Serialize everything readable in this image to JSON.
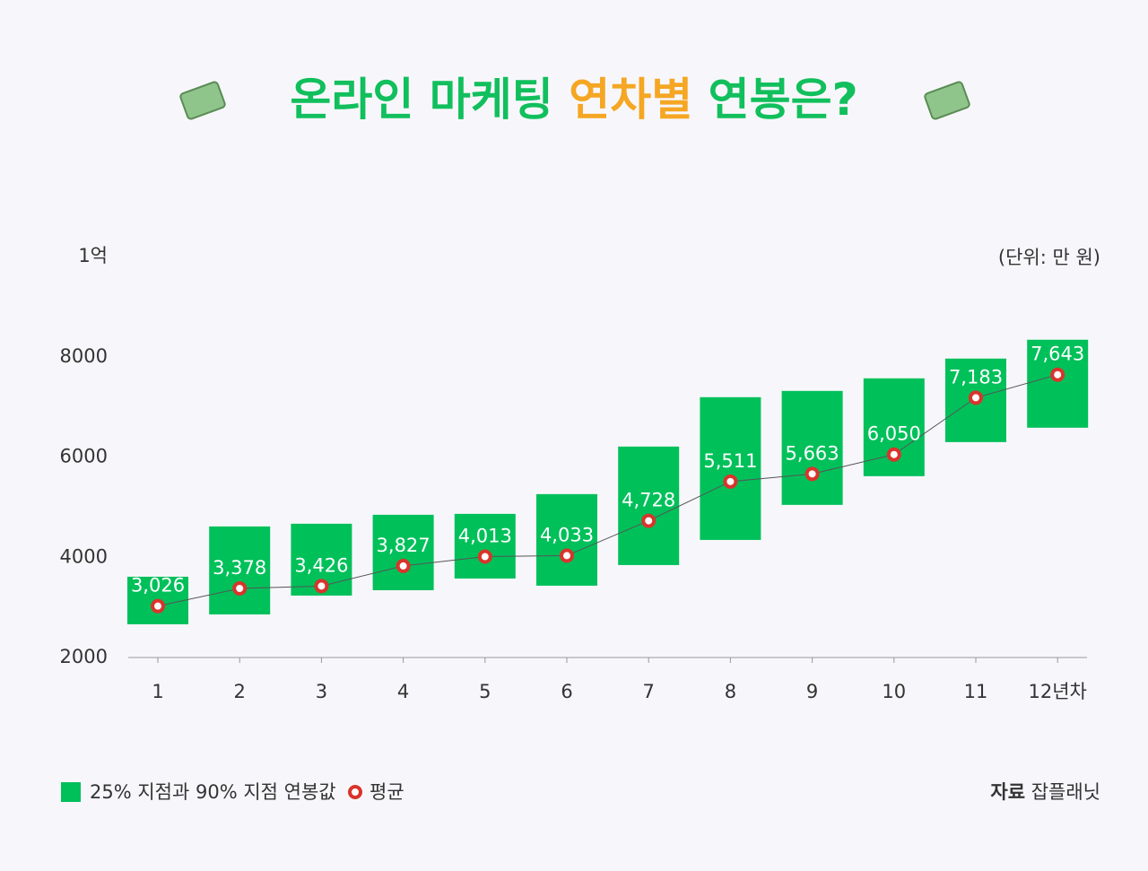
{
  "chart_data": {
    "type": "range-bar-line",
    "title_parts": [
      "온라인 마케팅 ",
      "연차별",
      " 연봉은?"
    ],
    "unit": "(단위: 만 원)",
    "categories": [
      "1",
      "2",
      "3",
      "4",
      "5",
      "6",
      "7",
      "8",
      "9",
      "10",
      "11",
      "12년차"
    ],
    "ylim": [
      2000,
      10000
    ],
    "yticks": [
      2000,
      4000,
      6000,
      8000,
      {
        "value": 10000,
        "label": "1억"
      }
    ],
    "grid": false,
    "series": [
      {
        "name": "25% 지점과 90% 지점 연봉값",
        "color": "#00c05a",
        "low": [
          2663,
          2860,
          3236,
          3343,
          3576,
          3433,
          3845,
          4346,
          5045,
          5618,
          6298,
          6585
        ],
        "high": [
          3612,
          4615,
          4669,
          4848,
          4866,
          5260,
          6209,
          7194,
          7319,
          7570,
          7964,
          8340
        ]
      },
      {
        "name": "평균",
        "color": "#d9342b",
        "values": [
          3026,
          3378,
          3426,
          3827,
          4013,
          4033,
          4728,
          5511,
          5663,
          6050,
          7183,
          7643
        ],
        "value_labels": [
          "3,026",
          "3,378",
          "3,426",
          "3,827",
          "4,013",
          "4,033",
          "4,728",
          "5,511",
          "5,663",
          "6,050",
          "7,183",
          "7,643"
        ]
      }
    ],
    "source_label": "자료",
    "source": "잡플래닛"
  }
}
